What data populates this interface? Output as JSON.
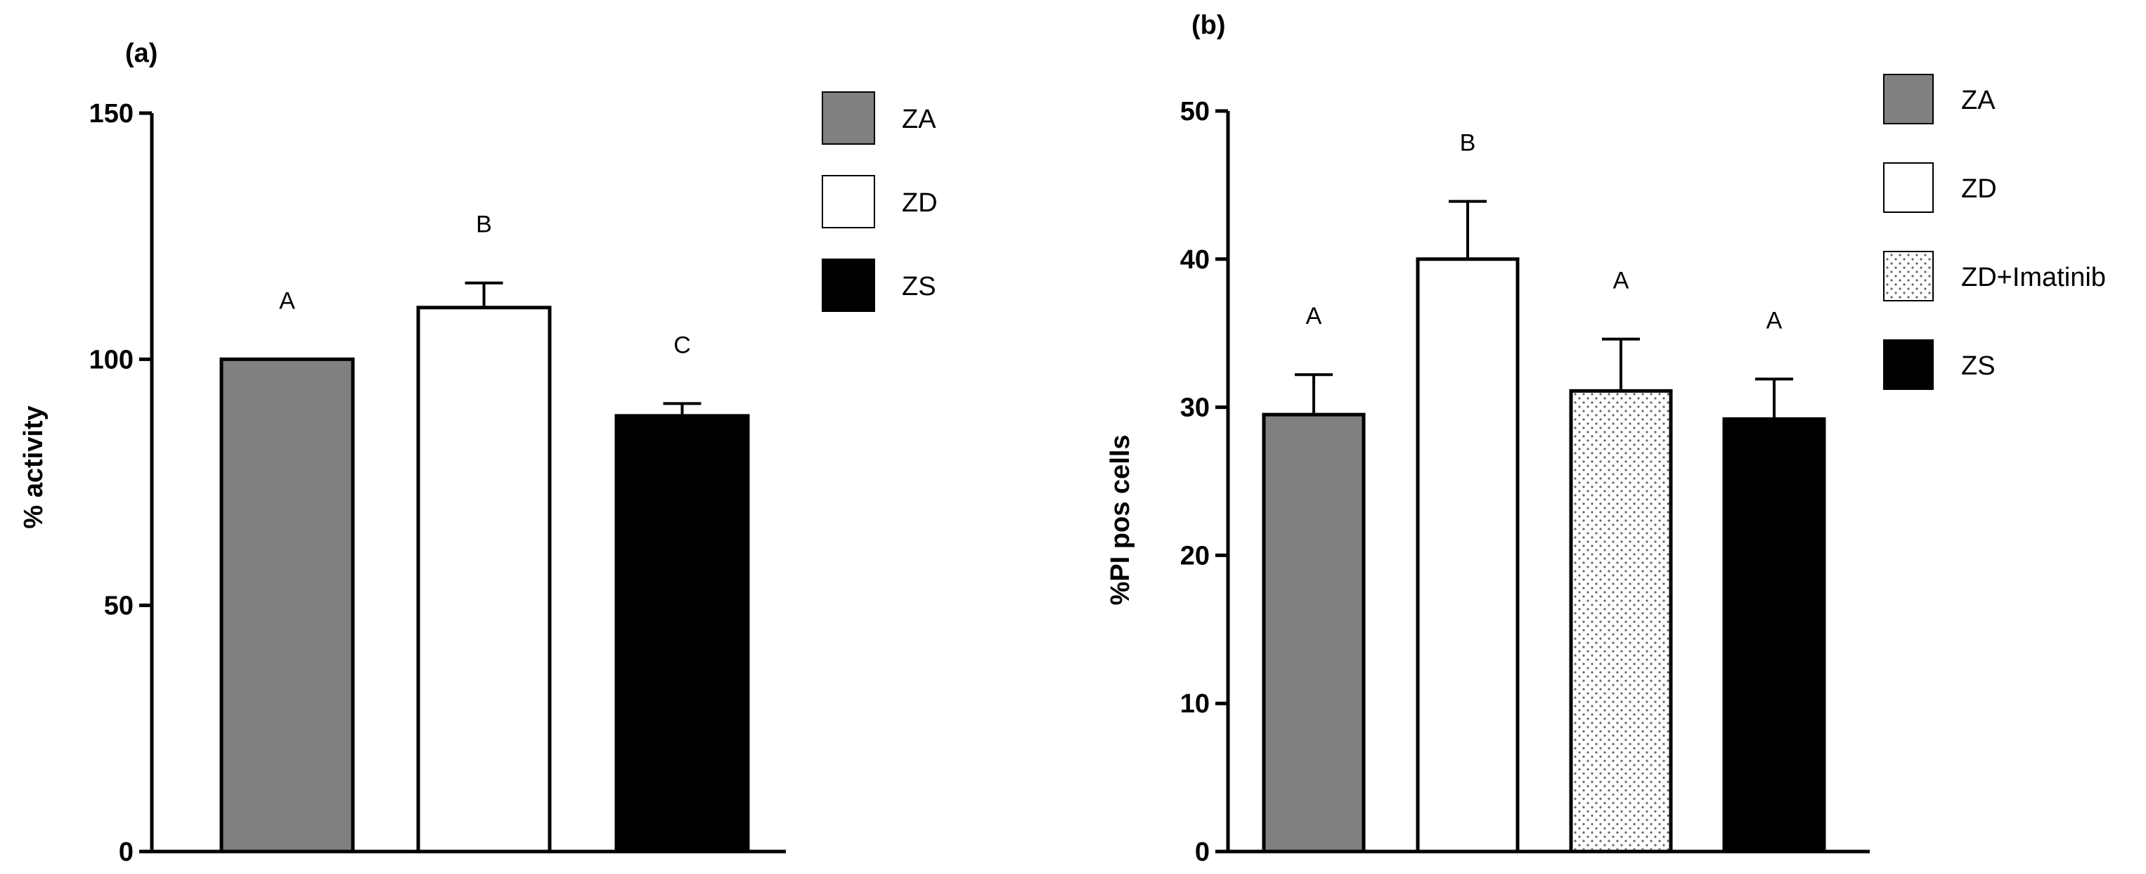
{
  "colors": {
    "ZA": "#808080",
    "ZD": "#ffffff",
    "ZS": "#000000",
    "ZD+Imatinib": "pattern"
  },
  "chart_data": [
    {
      "panel": "(a)",
      "type": "bar",
      "title": "",
      "xlabel": "",
      "ylabel": "% activity",
      "ylim": [
        0,
        150
      ],
      "yticks": [
        0,
        50,
        100,
        150
      ],
      "grid": false,
      "legend_position": "top-right",
      "categories": [
        "ZA",
        "ZD",
        "ZS"
      ],
      "values": [
        100,
        110.5,
        88.5
      ],
      "errors": [
        0,
        5,
        2.5
      ],
      "significance_letters": [
        "A",
        "B",
        "C"
      ],
      "legend": [
        {
          "label": "ZA",
          "style": "gray"
        },
        {
          "label": "ZD",
          "style": "white"
        },
        {
          "label": "ZS",
          "style": "black"
        }
      ]
    },
    {
      "panel": "(b)",
      "type": "bar",
      "title": "",
      "xlabel": "",
      "ylabel": "%PI pos cells",
      "ylim": [
        0,
        50
      ],
      "yticks": [
        0,
        10,
        20,
        30,
        40,
        50
      ],
      "grid": false,
      "legend_position": "top-right",
      "categories": [
        "ZA",
        "ZD",
        "ZD+Imatinib",
        "ZS"
      ],
      "values": [
        29.5,
        40,
        31.1,
        29.2
      ],
      "errors": [
        2.7,
        3.9,
        3.5,
        2.7
      ],
      "significance_letters": [
        "A",
        "B",
        "A",
        "A"
      ],
      "legend": [
        {
          "label": "ZA",
          "style": "gray"
        },
        {
          "label": "ZD",
          "style": "white"
        },
        {
          "label": "ZD+Imatinib",
          "style": "dotted"
        },
        {
          "label": "ZS",
          "style": "black"
        }
      ]
    }
  ]
}
